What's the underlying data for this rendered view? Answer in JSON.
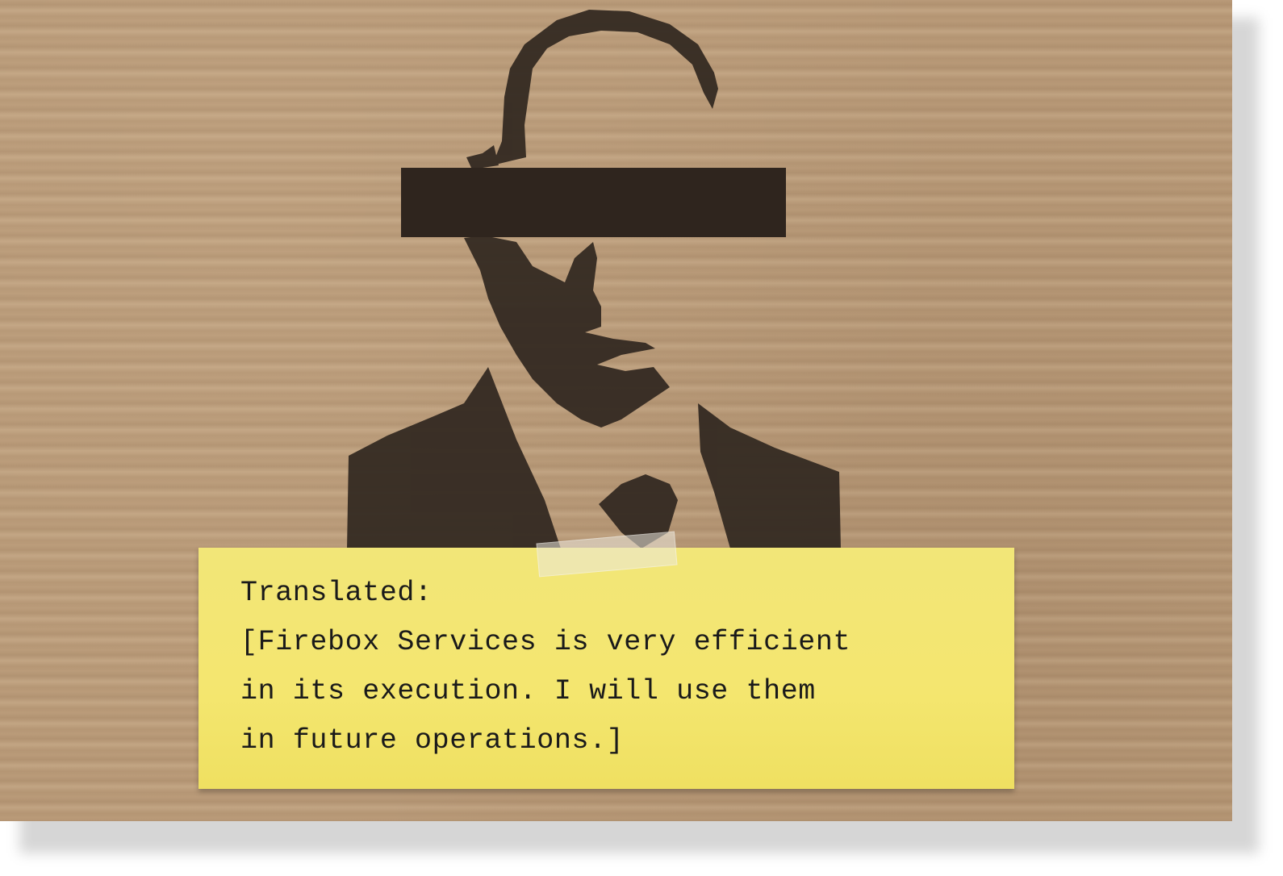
{
  "note": {
    "lines": [
      "Translated:",
      "[Firebox Services is very efficient",
      "in its execution. I will use them",
      "in future operations.]"
    ]
  },
  "colors": {
    "cardboard": "#b99a78",
    "stencil": "#342a22",
    "sticky_note": "#f4e66f",
    "text": "#1a1a1a"
  }
}
